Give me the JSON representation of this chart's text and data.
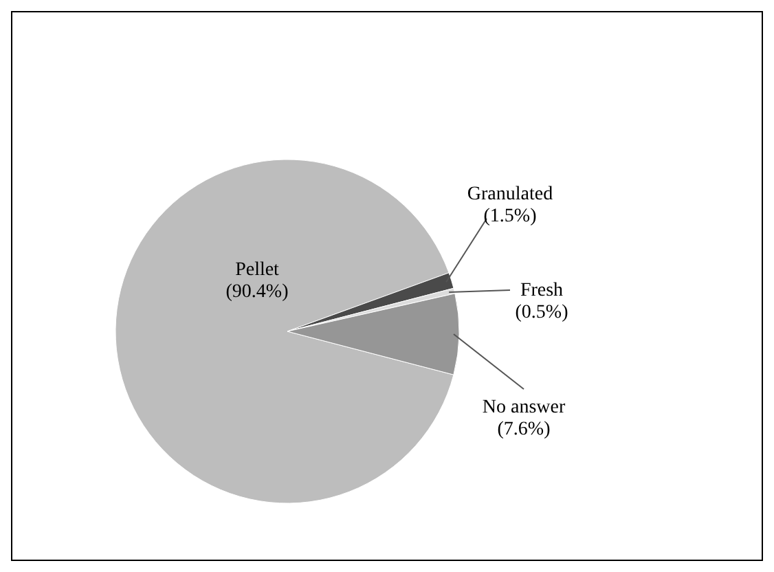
{
  "chart_data": {
    "type": "pie",
    "categories": [
      "Pellet",
      "Granulated",
      "Fresh",
      "No answer"
    ],
    "values": [
      90.4,
      1.5,
      0.5,
      7.6
    ],
    "colors": [
      "#bdbdbd",
      "#4a4a4a",
      "#dcdcdc",
      "#969696"
    ],
    "value_labels": [
      "(90.4%)",
      "(1.5%)",
      "(0.5%)",
      "(7.6%)"
    ],
    "legend": false
  }
}
